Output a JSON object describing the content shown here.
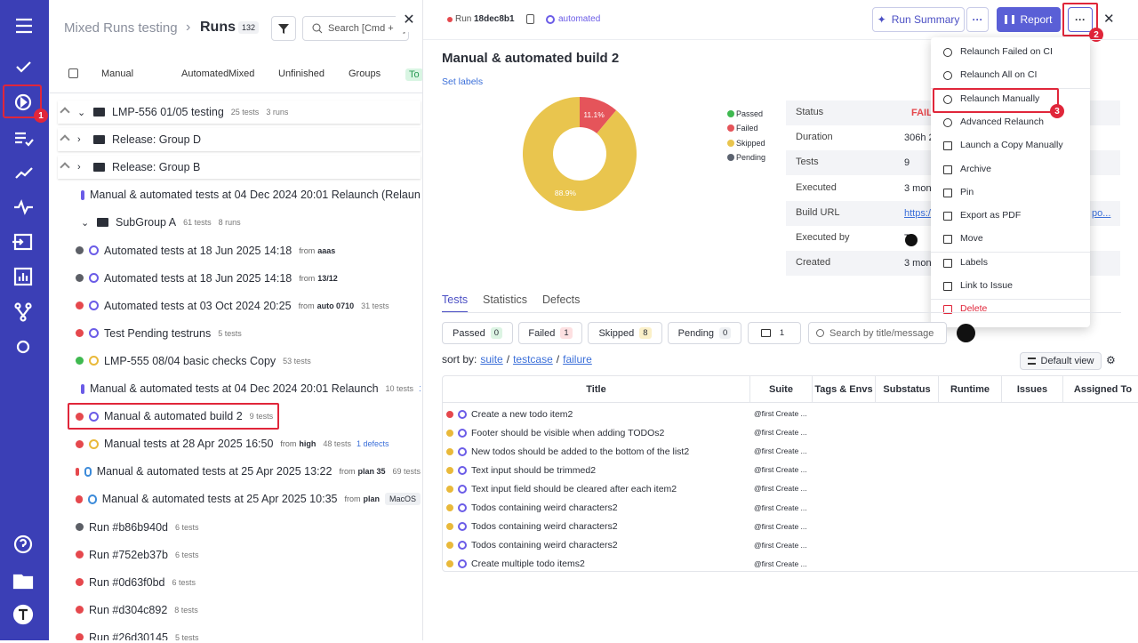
{
  "annotations": {
    "sidebar": "1",
    "more_button": "2",
    "relaunch_manually": "3"
  },
  "runs_panel": {
    "breadcrumb": "Mixed Runs testing",
    "separator": "›",
    "title": "Runs",
    "count": "132",
    "search_placeholder": "Search [Cmd + K]",
    "tabs": [
      "Manual",
      "Automated",
      "Mixed",
      "Unfinished",
      "Groups",
      "To"
    ],
    "items": [
      {
        "kind": "group",
        "name": "LMP-556 01/05 testing",
        "meta": [
          "25 tests",
          "3 runs"
        ],
        "pinned": true,
        "expanded": true
      },
      {
        "kind": "group",
        "name": "Release: Group D",
        "pinned": true
      },
      {
        "kind": "group",
        "name": "Release: Group B",
        "pinned": true
      },
      {
        "kind": "run",
        "status": "failed",
        "icon": "auto",
        "name": "Manual & automated tests at 04 Dec 2024 20:01 Relaunch (Relaunc"
      },
      {
        "kind": "group",
        "name": "SubGroup A",
        "meta": [
          "61 tests",
          "8 runs"
        ],
        "expanded": true
      },
      {
        "kind": "run",
        "status": "pending",
        "icon": "auto",
        "name": "Automated tests at 18 Jun 2025 14:18",
        "from": {
          "prefix": "from",
          "value": "aaas"
        }
      },
      {
        "kind": "run",
        "status": "pending",
        "icon": "auto",
        "name": "Automated tests at 18 Jun 2025 14:18",
        "from": {
          "prefix": "from",
          "value": "13/12"
        }
      },
      {
        "kind": "run",
        "status": "failed",
        "icon": "auto",
        "name": "Automated tests at 03 Oct 2024 20:25",
        "from": {
          "prefix": "from",
          "value": "auto 0710"
        },
        "meta": [
          "31 tests"
        ]
      },
      {
        "kind": "run",
        "status": "failed",
        "icon": "auto",
        "name": "Test Pending testruns",
        "meta": [
          "5 tests"
        ]
      },
      {
        "kind": "run",
        "status": "passed",
        "icon": "manual",
        "name": "LMP-555 08/04 basic checks Copy",
        "meta": [
          "53 tests"
        ]
      },
      {
        "kind": "run",
        "status": "failed",
        "icon": "auto",
        "name": "Manual & automated tests at 04 Dec 2024 20:01 Relaunch",
        "meta": [
          "10 tests"
        ],
        "extra": "1"
      },
      {
        "kind": "run",
        "status": "failed",
        "icon": "auto",
        "name": "Manual & automated build 2",
        "meta": [
          "9 tests"
        ],
        "highlight": true
      },
      {
        "kind": "run",
        "status": "failed",
        "icon": "manual",
        "name": "Manual tests at 28 Apr 2025 16:50",
        "from": {
          "prefix": "from",
          "value": "high"
        },
        "meta": [
          "48 tests"
        ],
        "extra": "1 defects"
      },
      {
        "kind": "run",
        "status": "failed",
        "icon": "mixed",
        "name": "Manual & automated tests at 25 Apr 2025 13:22",
        "from": {
          "prefix": "from",
          "value": "plan 35"
        },
        "meta": [
          "69 tests"
        ]
      },
      {
        "kind": "run",
        "status": "failed",
        "icon": "mixed",
        "name": "Manual & automated tests at 25 Apr 2025 10:35",
        "from": {
          "prefix": "from",
          "value": "plan"
        },
        "tag": "MacOS"
      },
      {
        "kind": "run",
        "status": "pending",
        "icon": "none",
        "name": "Run #b86b940d",
        "meta": [
          "6 tests"
        ]
      },
      {
        "kind": "run",
        "status": "failed",
        "icon": "none",
        "name": "Run #752eb37b",
        "meta": [
          "6 tests"
        ]
      },
      {
        "kind": "run",
        "status": "failed",
        "icon": "none",
        "name": "Run #0d63f0bd",
        "meta": [
          "6 tests"
        ]
      },
      {
        "kind": "run",
        "status": "failed",
        "icon": "none",
        "name": "Run #d304c892",
        "meta": [
          "8 tests"
        ]
      },
      {
        "kind": "run",
        "status": "failed",
        "icon": "none",
        "name": "Run #26d30145",
        "meta": [
          "5 tests"
        ]
      }
    ]
  },
  "run": {
    "run_label": "Run",
    "run_id": "18dec8b1",
    "tag": "automated",
    "buttons": {
      "summary": "Run Summary",
      "more": "···",
      "report": "Report",
      "more2": "···"
    },
    "title": "Manual & automated build 2",
    "set_labels": "Set labels",
    "donut": {
      "series": [
        {
          "name": "Failed",
          "value": 11.1,
          "label": "11.1%",
          "color": "#e5545a"
        },
        {
          "name": "Skipped",
          "value": 88.9,
          "label": "88.9%",
          "color": "#e9c54e"
        }
      ]
    },
    "legend": [
      {
        "name": "Passed",
        "color": "#3fb950"
      },
      {
        "name": "Failed",
        "color": "#e5545a"
      },
      {
        "name": "Skipped",
        "color": "#e9c54e"
      },
      {
        "name": "Pending",
        "color": "#5c6370"
      }
    ],
    "info": [
      {
        "label": "Status",
        "value": "FAIL"
      },
      {
        "label": "Duration",
        "value": "306h 2"
      },
      {
        "label": "Tests",
        "value": "9"
      },
      {
        "label": "Executed",
        "value": "3 mon"
      },
      {
        "label": "Build URL",
        "value": "https:/",
        "tail": "po..."
      },
      {
        "label": "Executed by",
        "value": "Ta"
      },
      {
        "label": "Created",
        "value": "3 mon"
      }
    ],
    "menu": [
      "Relaunch Failed on CI",
      "Relaunch All on CI",
      "Relaunch Manually",
      "Advanced Relaunch",
      "Launch a Copy Manually",
      "Archive",
      "Pin",
      "Export as PDF",
      "Move",
      "Labels",
      "Link to Issue",
      "Delete"
    ],
    "tabs": [
      "Tests",
      "Statistics",
      "Defects"
    ],
    "filters": [
      {
        "name": "Passed",
        "count": "0"
      },
      {
        "name": "Failed",
        "count": "1"
      },
      {
        "name": "Skipped",
        "count": "8"
      },
      {
        "name": "Pending",
        "count": "0"
      },
      {
        "name": "",
        "count": "1"
      }
    ],
    "search_placeholder": "Search by title/message",
    "sort": {
      "label": "sort by:",
      "options": [
        "suite",
        "testcase",
        "failure"
      ],
      "separator": "/"
    },
    "view": "Default view",
    "columns": [
      "Title",
      "Suite",
      "Tags & Envs",
      "Substatus",
      "Runtime",
      "Issues",
      "Assigned To"
    ],
    "rows": [
      {
        "status": "failed",
        "title": "Create a new todo item2",
        "suite": "@first Create ..."
      },
      {
        "status": "skipped",
        "title": "Footer should be visible when adding TODOs2",
        "suite": "@first Create ..."
      },
      {
        "status": "skipped",
        "title": "New todos should be added to the bottom of the list2",
        "suite": "@first Create ..."
      },
      {
        "status": "skipped",
        "title": "Text input should be trimmed2",
        "suite": "@first Create ..."
      },
      {
        "status": "skipped",
        "title": "Text input field should be cleared after each item2",
        "suite": "@first Create ..."
      },
      {
        "status": "skipped",
        "title": "Todos containing weird characters2",
        "suite": "@first Create ..."
      },
      {
        "status": "skipped",
        "title": "Todos containing weird characters2",
        "suite": "@first Create ..."
      },
      {
        "status": "skipped",
        "title": "Todos containing weird characters2",
        "suite": "@first Create ..."
      },
      {
        "status": "skipped",
        "title": "Create multiple todo items2",
        "suite": "@first Create ..."
      }
    ]
  }
}
